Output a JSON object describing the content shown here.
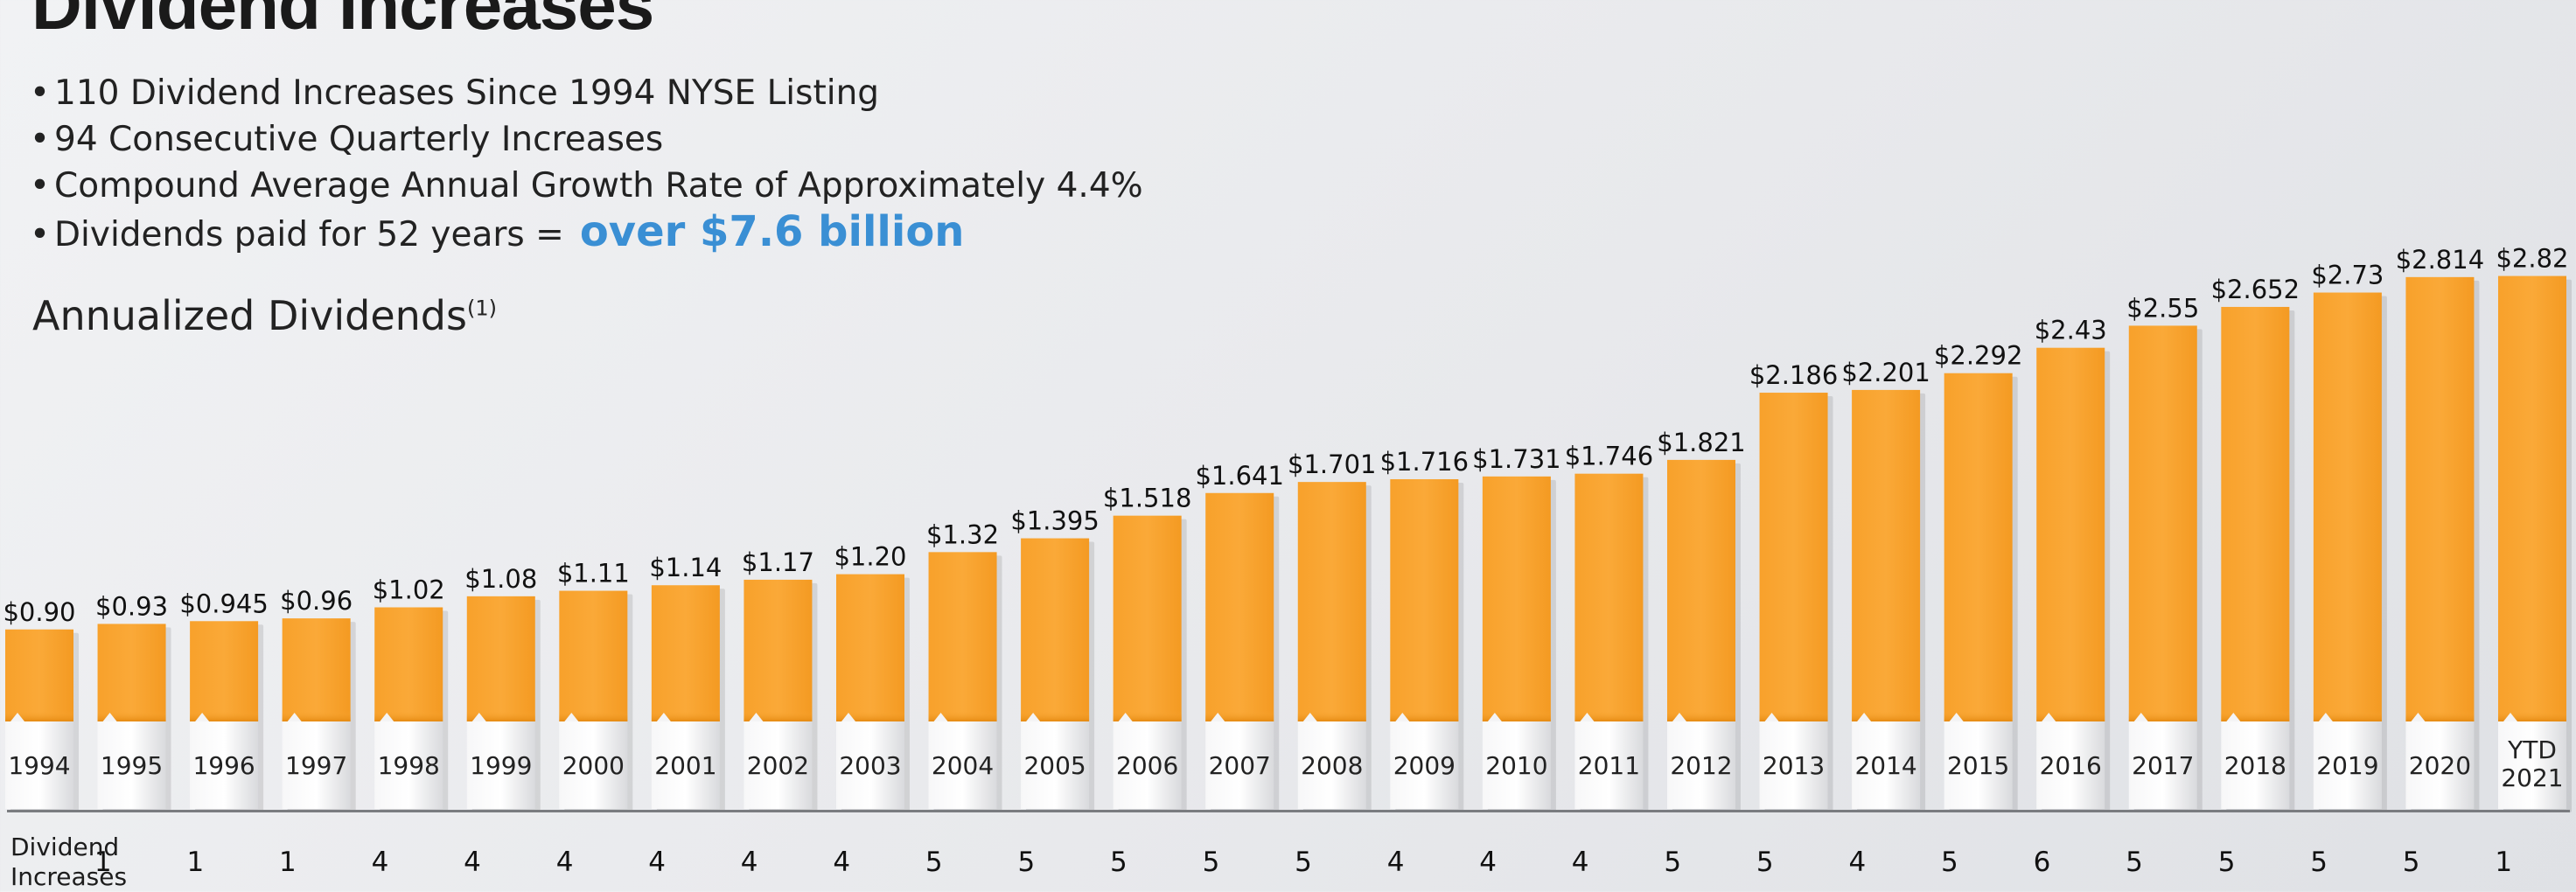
{
  "header": {
    "title": "Dividend Increases",
    "bullets": [
      {
        "text": "110 Dividend Increases Since 1994 NYSE Listing",
        "highlight": ""
      },
      {
        "text": "94 Consecutive Quarterly Increases",
        "highlight": ""
      },
      {
        "text": "Compound Average Annual Growth Rate of Approximately 4.4%",
        "highlight": ""
      },
      {
        "text": "Dividends paid for 52 years =",
        "highlight": "over $7.6 billion"
      }
    ],
    "bullet_symbol": "•"
  },
  "chart_heading": {
    "label": "Annualized Dividends",
    "footnote": "(1)"
  },
  "increases_row_label": [
    "Dividend",
    "Increases"
  ],
  "colors": {
    "bar": "#f9a633",
    "bar_base": "#e8e8ea",
    "highlight_text": "#3a8fd4"
  },
  "chart_data": {
    "type": "bar",
    "title": "Annualized Dividends",
    "categories": [
      "1994",
      "1995",
      "1996",
      "1997",
      "1998",
      "1999",
      "2000",
      "2001",
      "2002",
      "2003",
      "2004",
      "2005",
      "2006",
      "2007",
      "2008",
      "2009",
      "2010",
      "2011",
      "2012",
      "2013",
      "2014",
      "2015",
      "2016",
      "2017",
      "2018",
      "2019",
      "2020",
      "YTD 2021"
    ],
    "values": [
      0.9,
      0.93,
      0.945,
      0.96,
      1.02,
      1.08,
      1.11,
      1.14,
      1.17,
      1.2,
      1.32,
      1.395,
      1.518,
      1.641,
      1.701,
      1.716,
      1.731,
      1.746,
      1.821,
      2.186,
      2.201,
      2.292,
      2.43,
      2.55,
      2.652,
      2.73,
      2.814,
      2.82
    ],
    "value_labels": [
      "$0.90",
      "$0.93",
      "$0.945",
      "$0.96",
      "$1.02",
      "$1.08",
      "$1.11",
      "$1.14",
      "$1.17",
      "$1.20",
      "$1.32",
      "$1.395",
      "$1.518",
      "$1.641",
      "$1.701",
      "$1.716",
      "$1.731",
      "$1.746",
      "$1.821",
      "$2.186",
      "$2.201",
      "$2.292",
      "$2.43",
      "$2.55",
      "$2.652",
      "$2.73",
      "$2.814",
      "$2.82"
    ],
    "dividend_increases": [
      1,
      1,
      1,
      4,
      4,
      4,
      4,
      4,
      4,
      5,
      5,
      5,
      5,
      5,
      4,
      4,
      4,
      5,
      5,
      4,
      5,
      6,
      5,
      5,
      5,
      5,
      1
    ],
    "ylim": [
      0,
      2.85
    ],
    "grid": false,
    "legend": "none"
  }
}
